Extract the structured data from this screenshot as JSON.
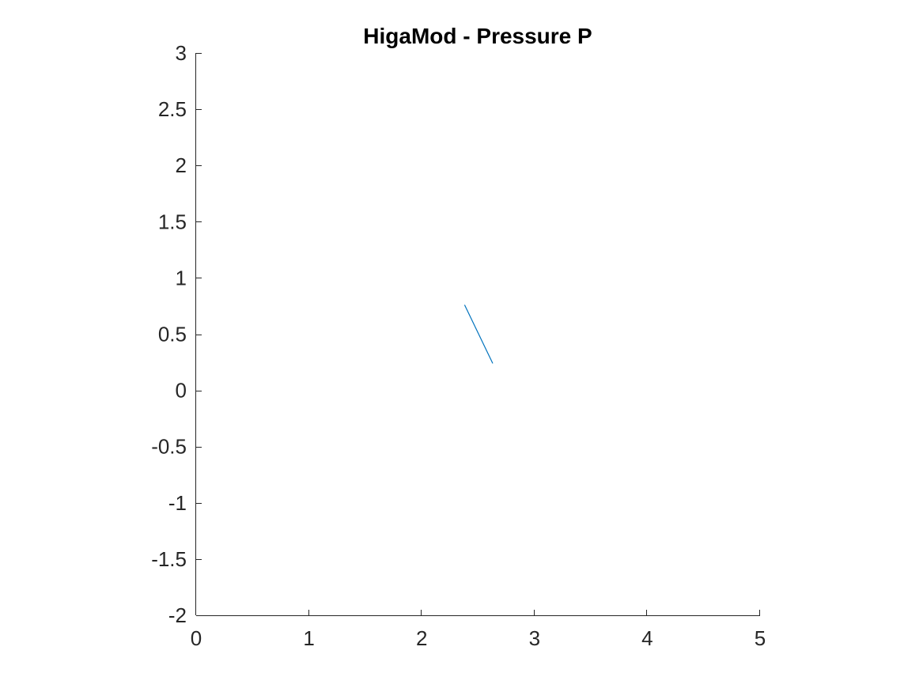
{
  "chart_data": {
    "type": "line",
    "title": "HigaMod - Pressure P",
    "xlabel": "",
    "ylabel": "",
    "xlim": [
      0,
      5
    ],
    "ylim": [
      -2,
      3
    ],
    "x_ticks": [
      0,
      1,
      2,
      3,
      4,
      5
    ],
    "x_tick_labels": [
      "0",
      "1",
      "2",
      "3",
      "4",
      "5"
    ],
    "y_ticks": [
      -2,
      -1.5,
      -1,
      -0.5,
      0,
      0.5,
      1,
      1.5,
      2,
      2.5,
      3
    ],
    "y_tick_labels": [
      "-2",
      "-1.5",
      "-1",
      "-0.5",
      "0",
      "0.5",
      "1",
      "1.5",
      "2",
      "2.5",
      "3"
    ],
    "grid": false,
    "box": false,
    "series": [
      {
        "color": "#0072bd",
        "x": [
          2.38,
          2.63
        ],
        "y": [
          0.76,
          0.24
        ]
      }
    ]
  }
}
